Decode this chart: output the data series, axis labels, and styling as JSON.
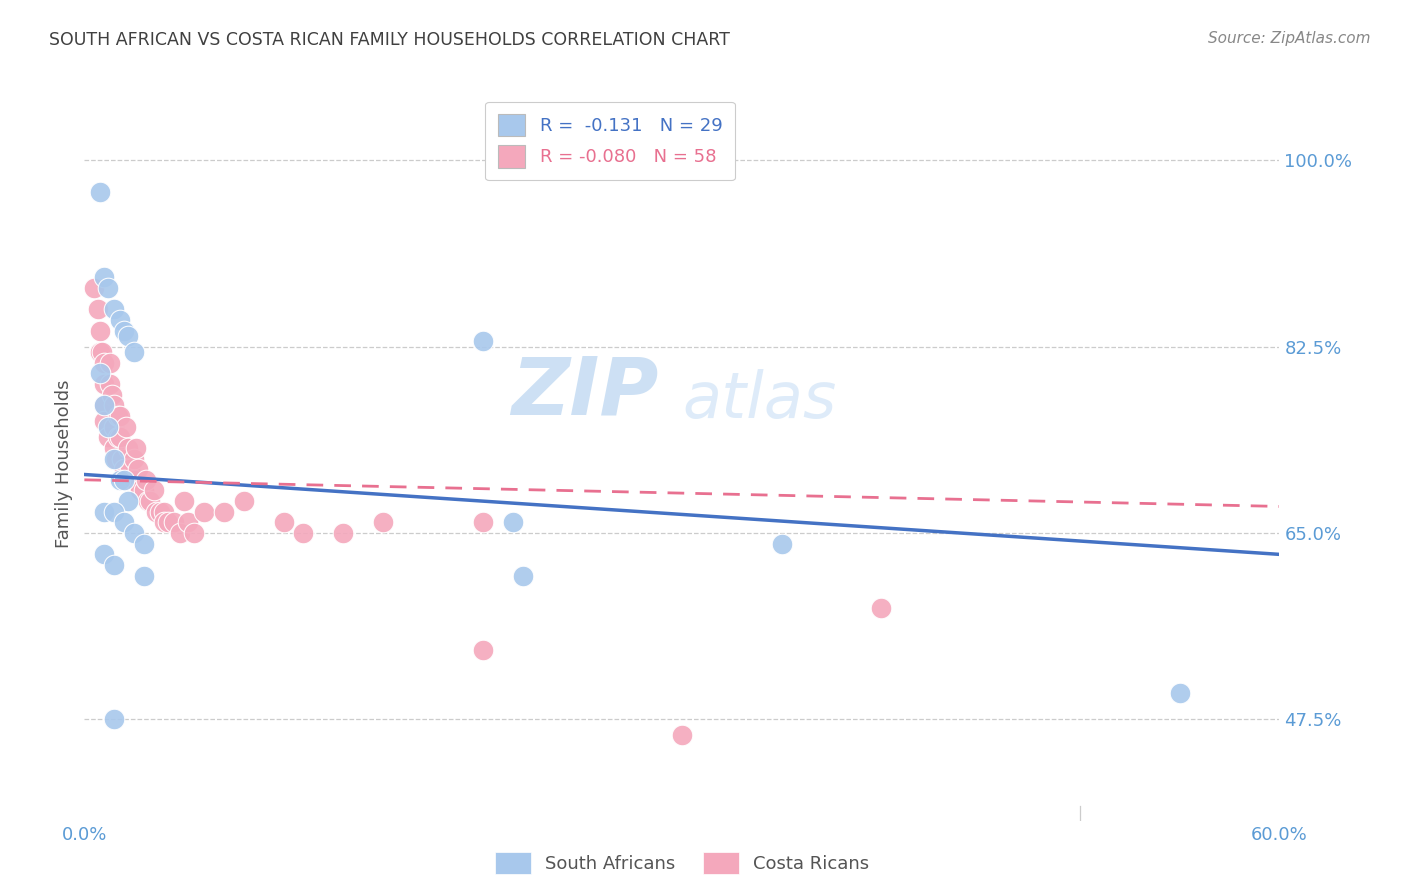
{
  "title": "SOUTH AFRICAN VS COSTA RICAN FAMILY HOUSEHOLDS CORRELATION CHART",
  "source": "Source: ZipAtlas.com",
  "ylabel": "Family Households",
  "ytick_vals": [
    0.475,
    0.65,
    0.825,
    1.0
  ],
  "ytick_labels": [
    "47.5%",
    "65.0%",
    "82.5%",
    "100.0%"
  ],
  "xmin": 0.0,
  "xmax": 0.6,
  "ymin": 0.38,
  "ymax": 1.05,
  "blue_color": "#A8C8EC",
  "pink_color": "#F4A8BC",
  "blue_line_color": "#4472C4",
  "pink_line_color": "#E87090",
  "title_color": "#404040",
  "tick_color": "#5B9BD5",
  "watermark_zip": "ZIP",
  "watermark_atlas": "atlas",
  "south_african_x": [
    0.008,
    0.01,
    0.012,
    0.015,
    0.018,
    0.02,
    0.022,
    0.025,
    0.008,
    0.01,
    0.012,
    0.015,
    0.018,
    0.02,
    0.022,
    0.01,
    0.015,
    0.02,
    0.025,
    0.03,
    0.01,
    0.015,
    0.03,
    0.2,
    0.215,
    0.22,
    0.35,
    0.55,
    0.015
  ],
  "south_african_y": [
    0.97,
    0.89,
    0.88,
    0.86,
    0.85,
    0.84,
    0.835,
    0.82,
    0.8,
    0.77,
    0.75,
    0.72,
    0.7,
    0.7,
    0.68,
    0.67,
    0.67,
    0.66,
    0.65,
    0.64,
    0.63,
    0.62,
    0.61,
    0.83,
    0.66,
    0.61,
    0.64,
    0.5,
    0.475
  ],
  "costa_rican_x": [
    0.005,
    0.007,
    0.008,
    0.008,
    0.009,
    0.01,
    0.01,
    0.01,
    0.01,
    0.012,
    0.013,
    0.013,
    0.014,
    0.015,
    0.015,
    0.015,
    0.016,
    0.017,
    0.017,
    0.018,
    0.018,
    0.019,
    0.02,
    0.02,
    0.021,
    0.022,
    0.023,
    0.025,
    0.025,
    0.026,
    0.027,
    0.028,
    0.03,
    0.031,
    0.032,
    0.033,
    0.035,
    0.036,
    0.038,
    0.04,
    0.04,
    0.042,
    0.045,
    0.048,
    0.05,
    0.052,
    0.055,
    0.06,
    0.07,
    0.08,
    0.1,
    0.11,
    0.13,
    0.15,
    0.2,
    0.2,
    0.3,
    0.4
  ],
  "costa_rican_y": [
    0.88,
    0.86,
    0.84,
    0.82,
    0.82,
    0.81,
    0.79,
    0.77,
    0.755,
    0.74,
    0.81,
    0.79,
    0.78,
    0.77,
    0.75,
    0.73,
    0.72,
    0.76,
    0.74,
    0.76,
    0.74,
    0.72,
    0.71,
    0.7,
    0.75,
    0.73,
    0.71,
    0.72,
    0.7,
    0.73,
    0.71,
    0.69,
    0.69,
    0.7,
    0.68,
    0.68,
    0.69,
    0.67,
    0.67,
    0.67,
    0.66,
    0.66,
    0.66,
    0.65,
    0.68,
    0.66,
    0.65,
    0.67,
    0.67,
    0.68,
    0.66,
    0.65,
    0.65,
    0.66,
    0.66,
    0.54,
    0.46,
    0.58
  ],
  "sa_line_x0": 0.0,
  "sa_line_x1": 0.6,
  "sa_line_y0": 0.705,
  "sa_line_y1": 0.63,
  "cr_line_x0": 0.0,
  "cr_line_x1": 0.6,
  "cr_line_y0": 0.7,
  "cr_line_y1": 0.675
}
